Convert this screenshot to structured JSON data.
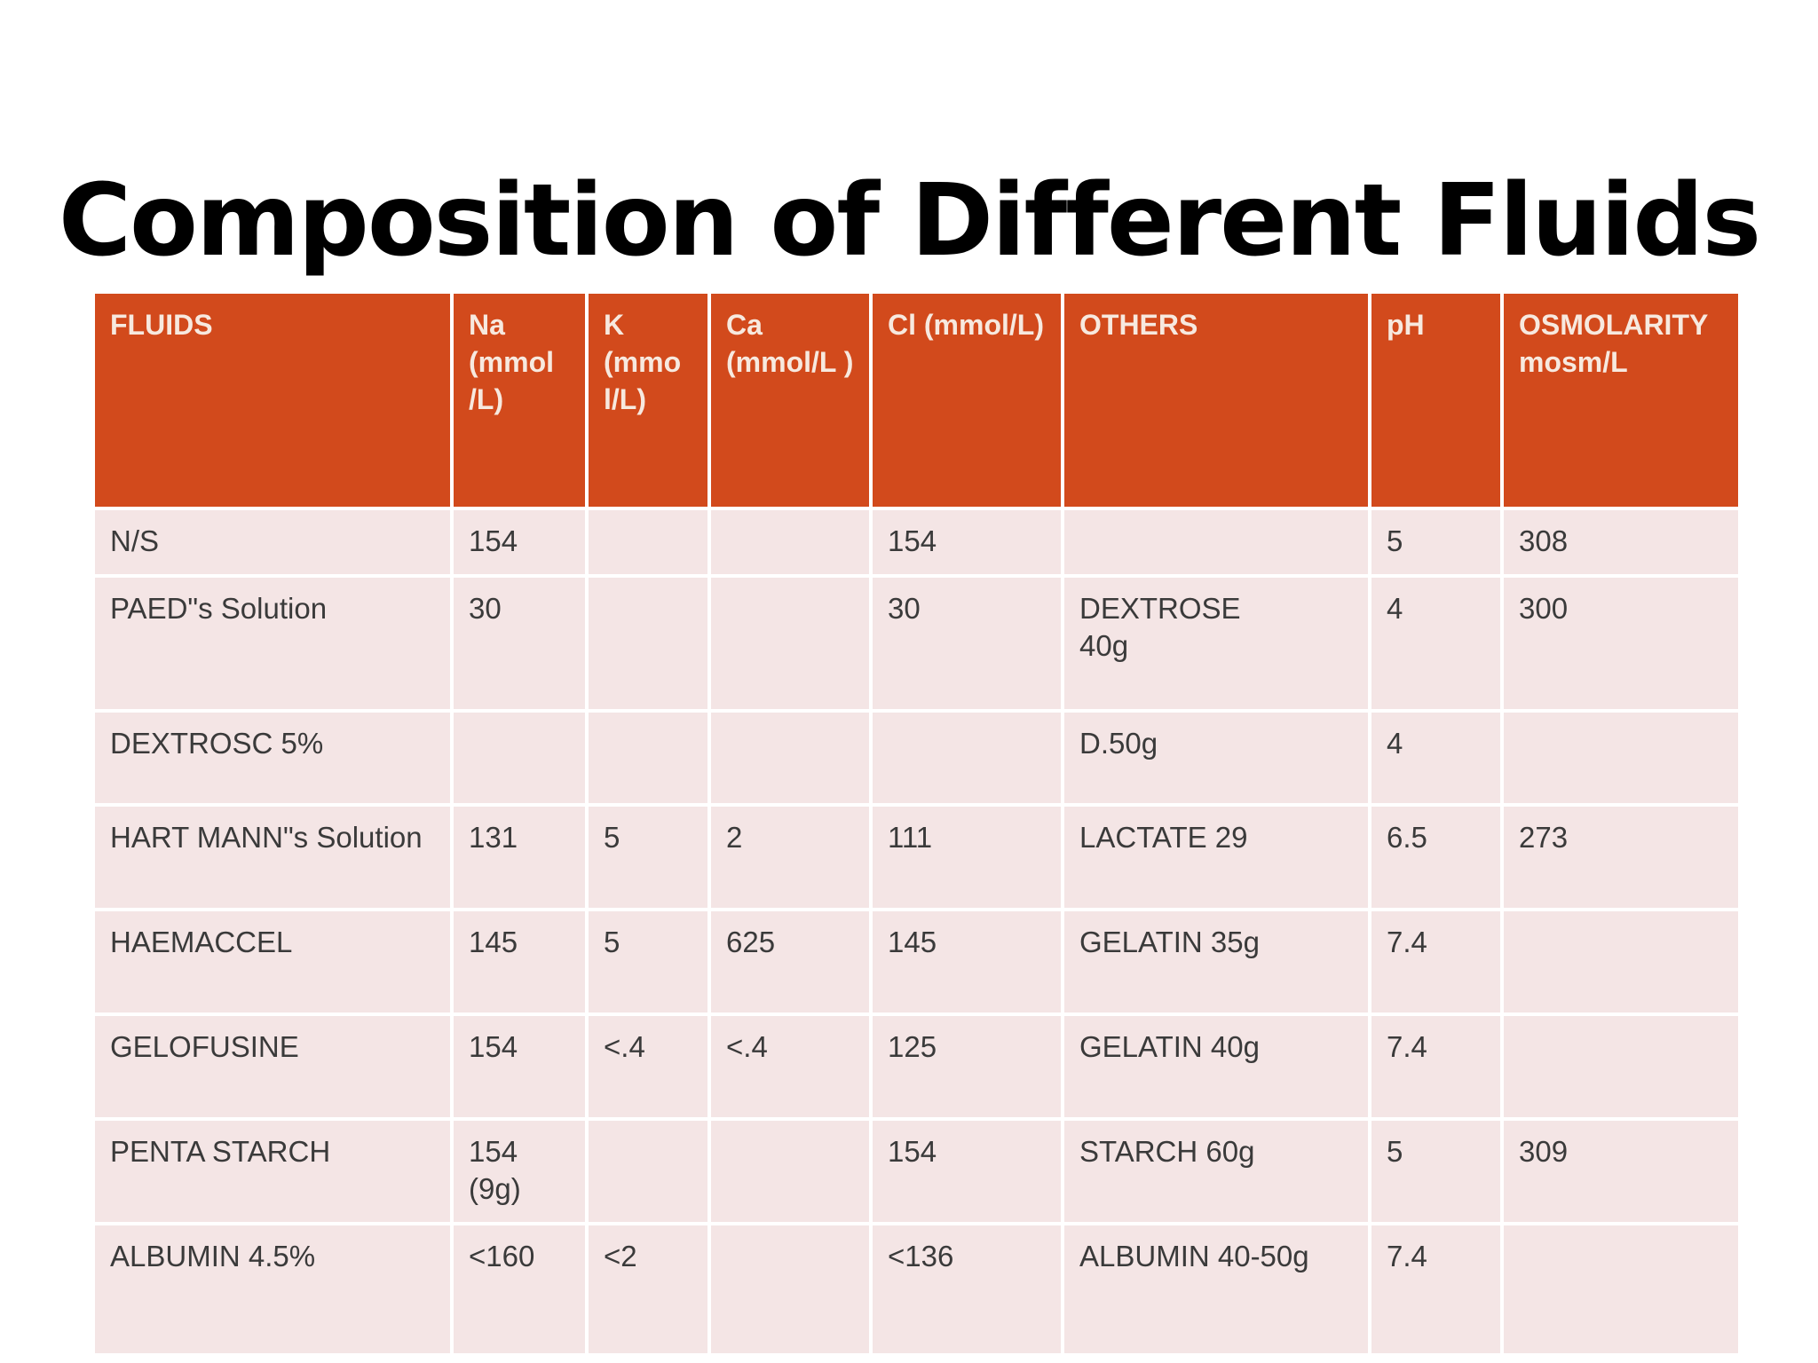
{
  "title": "Composition of Different Fluids",
  "table": {
    "headers": [
      "FLUIDS",
      "Na (mmol /L)",
      "K (mmo l/L)",
      "Ca (mmol/L )",
      "Cl (mmol/L)",
      "OTHERS",
      "pH",
      "OSMOLARITY mosm/L"
    ],
    "rows": [
      [
        "N/S",
        "154",
        "",
        "",
        "154",
        "",
        "5",
        "308"
      ],
      [
        "PAED\"s Solution",
        "30",
        "",
        "",
        "30",
        "DEXTROSE\n40g",
        "4",
        "300"
      ],
      [
        "DEXTROSC 5%",
        "",
        "",
        "",
        "",
        "D.50g",
        "4",
        ""
      ],
      [
        "HART MANN\"s Solution",
        "131",
        "5",
        "2",
        "111",
        "LACTATE 29",
        "6.5",
        "273"
      ],
      [
        "HAEMACCEL",
        "145",
        "5",
        "625",
        "145",
        "GELATIN 35g",
        "7.4",
        ""
      ],
      [
        "GELOFUSINE",
        "154",
        "<.4",
        "<.4",
        "125",
        "GELATIN 40g",
        "7.4",
        ""
      ],
      [
        "PENTA STARCH",
        "154\n(9g)",
        "",
        "",
        "154",
        "STARCH 60g",
        "5",
        "309"
      ],
      [
        "ALBUMIN 4.5%",
        "<160",
        "<2",
        "",
        "<136",
        "ALBUMIN 40-50g",
        "7.4",
        ""
      ]
    ]
  },
  "colors": {
    "header_background": "#d24a1c",
    "header_text": "#f7e9df",
    "body_background": "#f4e5e5",
    "body_text": "#3a3a3a"
  }
}
